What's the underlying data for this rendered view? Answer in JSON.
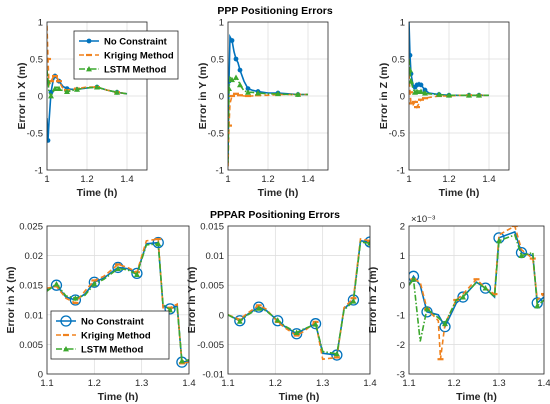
{
  "colors": {
    "no_constraint": "#0072BD",
    "kriging": "#F0821E",
    "lstm": "#3CA82E"
  },
  "chart_data": [
    {
      "type": "line",
      "title": "PPP Positioning Errors",
      "xlabel": "Time (h)",
      "ylabel": "Error in X (m)",
      "xlim": [
        1,
        1.5
      ],
      "ylim": [
        -1,
        1
      ],
      "xticks": [
        1,
        1.2,
        1.4
      ],
      "yticks": [
        -1,
        -0.5,
        0,
        0.5,
        1
      ],
      "xticklabels": [
        "1",
        "1.2",
        "1.4"
      ],
      "yticklabels": [
        "-1",
        "-0.5",
        "0",
        "0.5",
        "1"
      ],
      "grid": true,
      "legend": "top-right",
      "series": [
        {
          "name": "No Constraint",
          "x": [
            1,
            1.005,
            1.01,
            1.02,
            1.03,
            1.04,
            1.05,
            1.06,
            1.08,
            1.1,
            1.12,
            1.15,
            1.2,
            1.25,
            1.3,
            1.35,
            1.4
          ],
          "y": [
            -0.3,
            -0.6,
            -0.35,
            0.05,
            0.2,
            0.27,
            0.24,
            0.2,
            0.13,
            0.1,
            0.09,
            0.09,
            0.11,
            0.12,
            0.08,
            0.05,
            0.03
          ]
        },
        {
          "name": "Kriging Method",
          "x": [
            1,
            1.005,
            1.01,
            1.02,
            1.03,
            1.04,
            1.05,
            1.06,
            1.08,
            1.1,
            1.12,
            1.15,
            1.2,
            1.25,
            1.3,
            1.35,
            1.4
          ],
          "y": [
            0.95,
            0.5,
            0.15,
            0.2,
            0.25,
            0.27,
            0.25,
            0.2,
            0.1,
            0.08,
            0.08,
            0.1,
            0.12,
            0.12,
            0.08,
            0.05,
            0.03
          ]
        },
        {
          "name": "LSTM Method",
          "x": [
            1,
            1.005,
            1.01,
            1.02,
            1.03,
            1.04,
            1.05,
            1.06,
            1.08,
            1.1,
            1.12,
            1.15,
            1.2,
            1.25,
            1.3,
            1.35,
            1.4
          ],
          "y": [
            0.35,
            0.2,
            0.05,
            0.0,
            0.05,
            0.1,
            0.12,
            0.1,
            0.07,
            0.06,
            0.07,
            0.09,
            0.11,
            0.12,
            0.08,
            0.05,
            0.03
          ]
        }
      ]
    },
    {
      "type": "line",
      "xlabel": "Time (h)",
      "ylabel": "Error in Y (m)",
      "xlim": [
        1,
        1.5
      ],
      "ylim": [
        -1,
        1
      ],
      "xticks": [
        1,
        1.2,
        1.4
      ],
      "yticks": [
        -1,
        -0.5,
        0,
        0.5,
        1
      ],
      "xticklabels": [
        "1",
        "1.2",
        "1.4"
      ],
      "yticklabels": [
        "-1",
        "-0.5",
        "0",
        "0.5",
        "1"
      ],
      "grid": true,
      "series": [
        {
          "name": "No Constraint",
          "x": [
            1,
            1.005,
            1.01,
            1.02,
            1.03,
            1.04,
            1.05,
            1.06,
            1.08,
            1.1,
            1.12,
            1.15,
            1.2,
            1.25,
            1.3,
            1.35,
            1.4
          ],
          "y": [
            -0.85,
            0.2,
            0.8,
            0.75,
            0.6,
            0.5,
            0.45,
            0.35,
            0.2,
            0.1,
            0.08,
            0.06,
            0.04,
            0.04,
            0.03,
            0.02,
            0.02
          ]
        },
        {
          "name": "Kriging Method",
          "x": [
            1,
            1.005,
            1.01,
            1.02,
            1.03,
            1.04,
            1.05,
            1.06,
            1.08,
            1.1,
            1.12,
            1.15,
            1.2,
            1.25,
            1.3,
            1.35,
            1.4
          ],
          "y": [
            -0.95,
            -0.4,
            -0.1,
            0.0,
            0.02,
            0.03,
            0.02,
            0.01,
            0.0,
            0.0,
            0.0,
            0.01,
            0.01,
            0.02,
            0.02,
            0.02,
            0.02
          ]
        },
        {
          "name": "LSTM Method",
          "x": [
            1,
            1.005,
            1.01,
            1.02,
            1.03,
            1.04,
            1.05,
            1.06,
            1.08,
            1.1,
            1.12,
            1.15,
            1.2,
            1.25,
            1.3,
            1.35,
            1.4
          ],
          "y": [
            -0.9,
            0.1,
            0.25,
            0.22,
            0.2,
            0.25,
            0.22,
            0.15,
            0.07,
            0.05,
            0.05,
            0.04,
            0.03,
            0.03,
            0.02,
            0.02,
            0.02
          ]
        }
      ]
    },
    {
      "type": "line",
      "xlabel": "Time (h)",
      "ylabel": "Error in Z (m)",
      "xlim": [
        1,
        1.5
      ],
      "ylim": [
        -1,
        1
      ],
      "xticks": [
        1,
        1.2,
        1.4
      ],
      "yticks": [
        -1,
        -0.5,
        0,
        0.5,
        1
      ],
      "xticklabels": [
        "1",
        "1.2",
        "1.4"
      ],
      "yticklabels": [
        "-1",
        "-0.5",
        "0",
        "0.5",
        "1"
      ],
      "grid": true,
      "series": [
        {
          "name": "No Constraint",
          "x": [
            1,
            1.005,
            1.01,
            1.02,
            1.03,
            1.04,
            1.05,
            1.06,
            1.08,
            1.1,
            1.15,
            1.2,
            1.25,
            1.3,
            1.35,
            1.4
          ],
          "y": [
            1.0,
            0.55,
            0.3,
            0.15,
            0.12,
            0.15,
            0.18,
            0.15,
            0.08,
            0.04,
            0.02,
            0.01,
            0.01,
            0.01,
            0.01,
            0.01
          ]
        },
        {
          "name": "Kriging Method",
          "x": [
            1,
            1.005,
            1.01,
            1.02,
            1.03,
            1.04,
            1.05,
            1.06,
            1.08,
            1.1,
            1.15,
            1.2,
            1.25,
            1.3,
            1.35,
            1.4
          ],
          "y": [
            0.3,
            0.05,
            -0.1,
            -0.12,
            -0.08,
            -0.15,
            -0.1,
            -0.05,
            -0.03,
            -0.02,
            0.0,
            0.0,
            0.01,
            0.01,
            0.01,
            0.01
          ]
        },
        {
          "name": "LSTM Method",
          "x": [
            1,
            1.005,
            1.01,
            1.02,
            1.03,
            1.04,
            1.05,
            1.06,
            1.08,
            1.1,
            1.15,
            1.2,
            1.25,
            1.3,
            1.35,
            1.4
          ],
          "y": [
            0.5,
            0.35,
            0.2,
            0.1,
            0.05,
            0.06,
            0.07,
            0.06,
            0.04,
            0.03,
            0.02,
            0.01,
            0.01,
            0.01,
            0.01,
            0.01
          ]
        }
      ]
    },
    {
      "type": "line",
      "title": "PPPAR Positioning Errors",
      "xlabel": "Time (h)",
      "ylabel": "Error in X (m)",
      "xlim": [
        1.1,
        1.4
      ],
      "ylim": [
        0,
        0.025
      ],
      "xticks": [
        1.1,
        1.2,
        1.3,
        1.4
      ],
      "yticks": [
        0,
        0.005,
        0.01,
        0.015,
        0.02,
        0.025
      ],
      "xticklabels": [
        "1.1",
        "1.2",
        "1.3",
        "1.4"
      ],
      "yticklabels": [
        "0",
        "0.005",
        "0.01",
        "0.015",
        "0.02",
        "0.025"
      ],
      "grid": true,
      "legend": "bottom-left",
      "series": [
        {
          "name": "No Constraint",
          "x": [
            1.1,
            1.12,
            1.14,
            1.16,
            1.18,
            1.2,
            1.22,
            1.25,
            1.27,
            1.29,
            1.31,
            1.335,
            1.345,
            1.36,
            1.375,
            1.385,
            1.4
          ],
          "y": [
            0.0142,
            0.015,
            0.013,
            0.0125,
            0.0135,
            0.0155,
            0.0162,
            0.018,
            0.0178,
            0.017,
            0.022,
            0.0222,
            0.0115,
            0.011,
            0.0115,
            0.002,
            0.0022
          ]
        },
        {
          "name": "Kriging Method",
          "x": [
            1.1,
            1.12,
            1.14,
            1.16,
            1.18,
            1.2,
            1.22,
            1.25,
            1.27,
            1.29,
            1.31,
            1.335,
            1.345,
            1.36,
            1.375,
            1.385,
            1.4
          ],
          "y": [
            0.0145,
            0.0148,
            0.0128,
            0.012,
            0.014,
            0.0158,
            0.0165,
            0.0185,
            0.018,
            0.0172,
            0.0225,
            0.0228,
            0.0112,
            0.0112,
            0.0118,
            0.0018,
            0.002
          ]
        },
        {
          "name": "LSTM Method",
          "x": [
            1.1,
            1.12,
            1.14,
            1.16,
            1.18,
            1.2,
            1.22,
            1.25,
            1.27,
            1.29,
            1.31,
            1.335,
            1.345,
            1.36,
            1.375,
            1.385,
            1.4
          ],
          "y": [
            0.014,
            0.0152,
            0.0132,
            0.0128,
            0.0133,
            0.0152,
            0.016,
            0.0178,
            0.0176,
            0.0168,
            0.0218,
            0.022,
            0.0118,
            0.0108,
            0.0112,
            0.0022,
            0.0024
          ]
        }
      ]
    },
    {
      "type": "line",
      "xlabel": "Time (h)",
      "ylabel": "Error in Y (m)",
      "xlim": [
        1.1,
        1.4
      ],
      "ylim": [
        -0.01,
        0.015
      ],
      "xticks": [
        1.1,
        1.2,
        1.3,
        1.4
      ],
      "yticks": [
        -0.01,
        -0.005,
        0,
        0.005,
        0.01,
        0.015
      ],
      "xticklabels": [
        "1.1",
        "1.2",
        "1.3",
        "1.4"
      ],
      "yticklabels": [
        "-0.01",
        "-0.005",
        "0",
        "0.005",
        "0.01",
        "0.015"
      ],
      "grid": true,
      "series": [
        {
          "name": "No Constraint",
          "x": [
            1.1,
            1.125,
            1.14,
            1.165,
            1.18,
            1.205,
            1.22,
            1.245,
            1.26,
            1.285,
            1.3,
            1.33,
            1.345,
            1.365,
            1.38,
            1.4
          ],
          "y": [
            0.0,
            -0.001,
            0.0,
            0.0013,
            0.0008,
            -0.001,
            -0.002,
            -0.0032,
            -0.0025,
            -0.0015,
            -0.0065,
            -0.0068,
            0.001,
            0.0025,
            0.0125,
            0.0123
          ]
        },
        {
          "name": "Kriging Method",
          "x": [
            1.1,
            1.125,
            1.14,
            1.165,
            1.18,
            1.205,
            1.22,
            1.245,
            1.26,
            1.285,
            1.3,
            1.33,
            1.345,
            1.365,
            1.38,
            1.4
          ],
          "y": [
            0.0,
            -0.0008,
            0.0002,
            0.0016,
            0.001,
            -0.0012,
            -0.0022,
            -0.0035,
            -0.0028,
            -0.0012,
            -0.0075,
            -0.0072,
            0.0012,
            0.0028,
            0.0128,
            0.0125
          ]
        },
        {
          "name": "LSTM Method",
          "x": [
            1.1,
            1.125,
            1.14,
            1.165,
            1.18,
            1.205,
            1.22,
            1.245,
            1.26,
            1.285,
            1.3,
            1.33,
            1.345,
            1.365,
            1.38,
            1.4
          ],
          "y": [
            0.0,
            -0.0011,
            -0.0001,
            0.0011,
            0.0007,
            -0.0009,
            -0.0019,
            -0.003,
            -0.0024,
            -0.0016,
            -0.0062,
            -0.0066,
            0.0008,
            0.0023,
            0.0123,
            0.0121
          ]
        }
      ]
    },
    {
      "type": "line",
      "xlabel": "Time (h)",
      "ylabel": "Error in Z (m)",
      "xlim": [
        1.1,
        1.4
      ],
      "ylim": [
        -0.003,
        0.002
      ],
      "xticks": [
        1.1,
        1.2,
        1.3,
        1.4
      ],
      "yticks": [
        -0.003,
        -0.002,
        -0.001,
        0,
        0.001,
        0.002
      ],
      "xticklabels": [
        "1.1",
        "1.2",
        "1.3",
        "1.4"
      ],
      "yticklabels": [
        "-3",
        "-2",
        "-1",
        "0",
        "1",
        "2"
      ],
      "exponent_label": "×10⁻³",
      "grid": true,
      "series": [
        {
          "name": "No Constraint",
          "x": [
            1.1,
            1.11,
            1.125,
            1.14,
            1.165,
            1.18,
            1.205,
            1.22,
            1.25,
            1.27,
            1.29,
            1.3,
            1.335,
            1.35,
            1.375,
            1.385,
            1.4
          ],
          "y": [
            0.0,
            0.0003,
            0.0,
            -0.0009,
            -0.001,
            -0.0014,
            -0.0006,
            -0.0004,
            0.0001,
            -0.0001,
            -0.0004,
            0.0016,
            0.0018,
            0.0011,
            0.001,
            -0.0006,
            -0.0004
          ]
        },
        {
          "name": "Kriging Method",
          "x": [
            1.1,
            1.11,
            1.125,
            1.14,
            1.165,
            1.17,
            1.18,
            1.205,
            1.22,
            1.25,
            1.27,
            1.29,
            1.3,
            1.335,
            1.35,
            1.375,
            1.385,
            1.4
          ],
          "y": [
            0.0,
            0.0002,
            0.0001,
            -0.0008,
            -0.0012,
            -0.0025,
            -0.0013,
            -0.0005,
            -0.0003,
            0.0002,
            -0.0001,
            -0.0003,
            0.0017,
            0.002,
            0.0012,
            0.0009,
            -0.0005,
            -0.0003
          ]
        },
        {
          "name": "LSTM Method",
          "x": [
            1.1,
            1.11,
            1.125,
            1.14,
            1.165,
            1.18,
            1.205,
            1.22,
            1.25,
            1.27,
            1.29,
            1.3,
            1.335,
            1.35,
            1.375,
            1.385,
            1.4
          ],
          "y": [
            0.0,
            0.0002,
            -0.0019,
            -0.0008,
            -0.0011,
            -0.0013,
            -0.0005,
            -0.0004,
            0.0001,
            -0.0001,
            -0.0004,
            0.0015,
            0.0017,
            0.001,
            0.0011,
            -0.0007,
            -0.0005
          ]
        }
      ]
    }
  ],
  "legends": [
    {
      "entries": [
        "No Constraint",
        "Kriging Method",
        "LSTM Method"
      ]
    },
    {
      "entries": [
        "No Constraint",
        "Kriging Method",
        "LSTM Method"
      ]
    }
  ]
}
